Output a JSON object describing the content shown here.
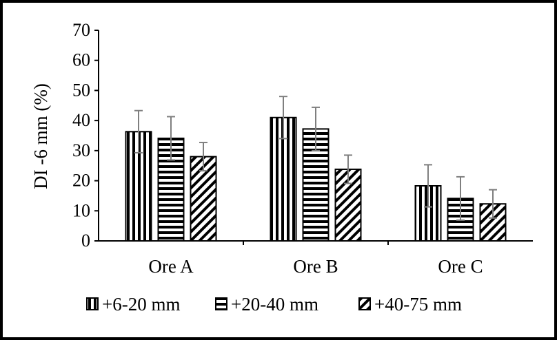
{
  "chart_data": {
    "type": "bar",
    "title": "",
    "xlabel": "",
    "ylabel": "DI -6 mm (%)",
    "ylim": [
      0,
      70
    ],
    "yticks": [
      0,
      10,
      20,
      30,
      40,
      50,
      60,
      70
    ],
    "grid": false,
    "legend_position": "bottom",
    "categories": [
      "Ore A",
      "Ore B",
      "Ore C"
    ],
    "series": [
      {
        "name": "+6-20 mm",
        "pattern": "vertical-stripes",
        "values": [
          36.3,
          41.0,
          18.3
        ],
        "errors": [
          7.0,
          7.0,
          7.0
        ]
      },
      {
        "name": "+20-40 mm",
        "pattern": "horizontal-stripes",
        "values": [
          34.1,
          37.2,
          14.1
        ],
        "errors": [
          7.2,
          7.2,
          7.2
        ]
      },
      {
        "name": "+40-75 mm",
        "pattern": "diagonal-stripes",
        "values": [
          28.0,
          23.8,
          12.3
        ],
        "errors": [
          4.7,
          4.7,
          4.7
        ]
      }
    ],
    "colors": {
      "stroke": "#000000",
      "fill": "#ffffff",
      "error_bar": "#7f7f7f"
    }
  }
}
